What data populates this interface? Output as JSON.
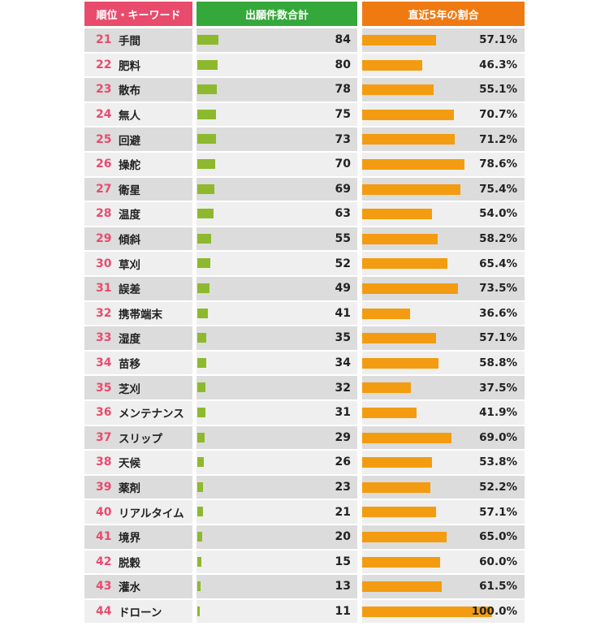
{
  "header": {
    "rank_keyword": "順位・キーワード",
    "count": "出願件数合計",
    "ratio": "直近5年の割合"
  },
  "colors": {
    "rank_header": "#e94b6c",
    "count_header": "#34a83a",
    "ratio_header": "#ef7a12",
    "count_bar": "#8db92e",
    "ratio_bar": "#f39c11"
  },
  "chart_data": {
    "type": "table",
    "columns": [
      "順位・キーワード",
      "出願件数合計",
      "直近5年の割合"
    ],
    "count_max": 84,
    "ratio_max": 100,
    "rows": [
      {
        "rank": "21",
        "keyword": "手間",
        "count": 84,
        "count_label": "84",
        "ratio": 57.1,
        "ratio_label": "57.1%"
      },
      {
        "rank": "22",
        "keyword": "肥料",
        "count": 80,
        "count_label": "80",
        "ratio": 46.3,
        "ratio_label": "46.3%"
      },
      {
        "rank": "23",
        "keyword": "散布",
        "count": 78,
        "count_label": "78",
        "ratio": 55.1,
        "ratio_label": "55.1%"
      },
      {
        "rank": "24",
        "keyword": "無人",
        "count": 75,
        "count_label": "75",
        "ratio": 70.7,
        "ratio_label": "70.7%"
      },
      {
        "rank": "25",
        "keyword": "回避",
        "count": 73,
        "count_label": "73",
        "ratio": 71.2,
        "ratio_label": "71.2%"
      },
      {
        "rank": "26",
        "keyword": "操舵",
        "count": 70,
        "count_label": "70",
        "ratio": 78.6,
        "ratio_label": "78.6%"
      },
      {
        "rank": "27",
        "keyword": "衛星",
        "count": 69,
        "count_label": "69",
        "ratio": 75.4,
        "ratio_label": "75.4%"
      },
      {
        "rank": "28",
        "keyword": "温度",
        "count": 63,
        "count_label": "63",
        "ratio": 54.0,
        "ratio_label": "54.0%"
      },
      {
        "rank": "29",
        "keyword": "傾斜",
        "count": 55,
        "count_label": "55",
        "ratio": 58.2,
        "ratio_label": "58.2%"
      },
      {
        "rank": "30",
        "keyword": "草刈",
        "count": 52,
        "count_label": "52",
        "ratio": 65.4,
        "ratio_label": "65.4%"
      },
      {
        "rank": "31",
        "keyword": "誤差",
        "count": 49,
        "count_label": "49",
        "ratio": 73.5,
        "ratio_label": "73.5%"
      },
      {
        "rank": "32",
        "keyword": "携帯端末",
        "count": 41,
        "count_label": "41",
        "ratio": 36.6,
        "ratio_label": "36.6%"
      },
      {
        "rank": "33",
        "keyword": "湿度",
        "count": 35,
        "count_label": "35",
        "ratio": 57.1,
        "ratio_label": "57.1%"
      },
      {
        "rank": "34",
        "keyword": "苗移",
        "count": 34,
        "count_label": "34",
        "ratio": 58.8,
        "ratio_label": "58.8%"
      },
      {
        "rank": "35",
        "keyword": "芝刈",
        "count": 32,
        "count_label": "32",
        "ratio": 37.5,
        "ratio_label": "37.5%"
      },
      {
        "rank": "36",
        "keyword": "メンテナンス",
        "count": 31,
        "count_label": "31",
        "ratio": 41.9,
        "ratio_label": "41.9%"
      },
      {
        "rank": "37",
        "keyword": "スリップ",
        "count": 29,
        "count_label": "29",
        "ratio": 69.0,
        "ratio_label": "69.0%"
      },
      {
        "rank": "38",
        "keyword": "天候",
        "count": 26,
        "count_label": "26",
        "ratio": 53.8,
        "ratio_label": "53.8%"
      },
      {
        "rank": "39",
        "keyword": "薬剤",
        "count": 23,
        "count_label": "23",
        "ratio": 52.2,
        "ratio_label": "52.2%"
      },
      {
        "rank": "40",
        "keyword": "リアルタイム",
        "count": 21,
        "count_label": "21",
        "ratio": 57.1,
        "ratio_label": "57.1%"
      },
      {
        "rank": "41",
        "keyword": "境界",
        "count": 20,
        "count_label": "20",
        "ratio": 65.0,
        "ratio_label": "65.0%"
      },
      {
        "rank": "42",
        "keyword": "脱穀",
        "count": 15,
        "count_label": "15",
        "ratio": 60.0,
        "ratio_label": "60.0%"
      },
      {
        "rank": "43",
        "keyword": "灌水",
        "count": 13,
        "count_label": "13",
        "ratio": 61.5,
        "ratio_label": "61.5%"
      },
      {
        "rank": "44",
        "keyword": "ドローン",
        "count": 11,
        "count_label": "11",
        "ratio": 100.0,
        "ratio_label": "100.0%"
      }
    ]
  }
}
